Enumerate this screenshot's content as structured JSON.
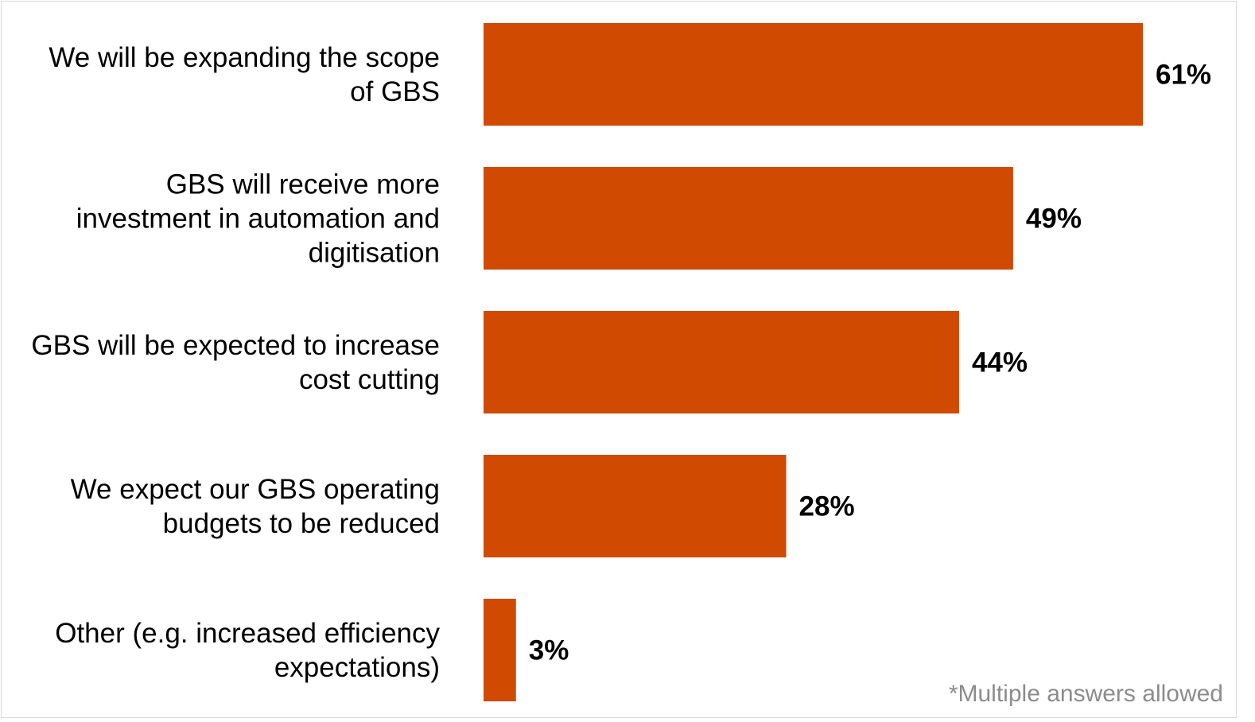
{
  "chart_data": {
    "type": "bar",
    "orientation": "horizontal",
    "categories": [
      [
        "We will be expanding the scope",
        "of GBS"
      ],
      [
        "GBS will receive more",
        "investment in automation and",
        "digitisation"
      ],
      [
        "GBS will be expected to increase",
        "cost cutting"
      ],
      [
        "We expect our GBS operating",
        "budgets to be reduced"
      ],
      [
        "Other (e.g. increased efficiency",
        "expectations)"
      ]
    ],
    "values": [
      61,
      49,
      44,
      28,
      3
    ],
    "value_labels": [
      "61%",
      "49%",
      "44%",
      "28%",
      "3%"
    ],
    "bar_color": "#d04a02",
    "xlim": [
      0,
      61
    ],
    "grid": false,
    "legend": "none"
  },
  "footnote": "*Multiple answers allowed"
}
